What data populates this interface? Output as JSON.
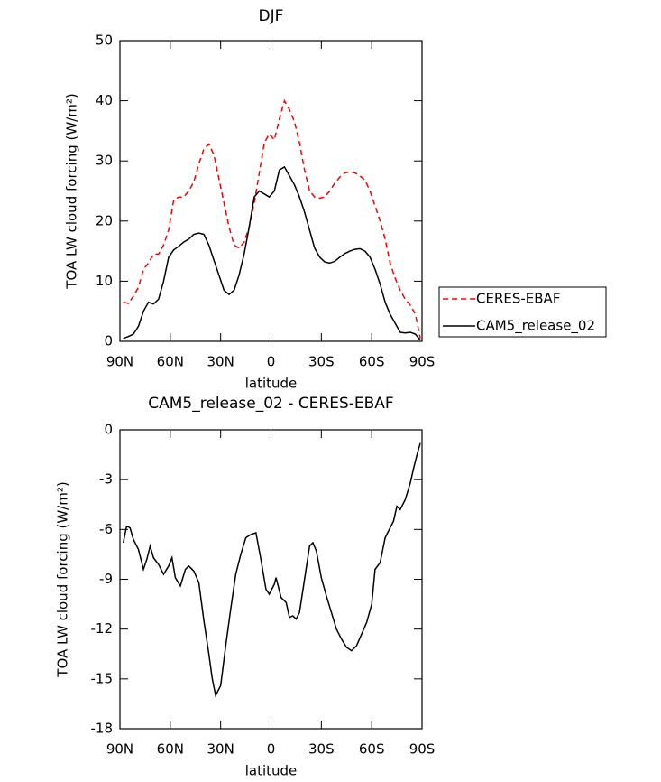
{
  "chart_data": [
    {
      "type": "line",
      "title": "DJF",
      "xlabel": "latitude",
      "ylabel": "TOA LW cloud forcing (W/m²)",
      "x": [
        88,
        85,
        82,
        79,
        76,
        73,
        70,
        67,
        64,
        61,
        58,
        55,
        52,
        49,
        46,
        43,
        40,
        37,
        34,
        31,
        28,
        25,
        22,
        19,
        16,
        13,
        10,
        7,
        4,
        1,
        -2,
        -5,
        -8,
        -11,
        -14,
        -17,
        -20,
        -23,
        -26,
        -29,
        -32,
        -35,
        -38,
        -41,
        -44,
        -47,
        -50,
        -53,
        -56,
        -59,
        -62,
        -65,
        -68,
        -71,
        -74,
        -77,
        -80,
        -83,
        -86,
        -89
      ],
      "series": [
        {
          "name": "CERES-EBAF",
          "color": "#ff0000",
          "linestyle": "dashed",
          "values": [
            6.5,
            6.3,
            7.5,
            9,
            12,
            13,
            14.5,
            14.5,
            16,
            18.5,
            23.5,
            24,
            24,
            25,
            26.5,
            29.5,
            32,
            32.8,
            31,
            27,
            23,
            19,
            16,
            15.5,
            16.5,
            19,
            23,
            28,
            33,
            34.5,
            33.5,
            37,
            40,
            38.5,
            36.5,
            33,
            28.5,
            25,
            24,
            23.8,
            24,
            25,
            26.3,
            27.3,
            28,
            28.2,
            28,
            27.5,
            26.8,
            25,
            22.5,
            20,
            17,
            13,
            10.5,
            8.5,
            7,
            6,
            4.5,
            0.5
          ]
        },
        {
          "name": "CAM5_release_02",
          "color": "#000000",
          "linestyle": "solid",
          "values": [
            0.5,
            0.8,
            1.2,
            2.5,
            5,
            6.5,
            6.2,
            7,
            10,
            14,
            15.2,
            15.8,
            16.5,
            17,
            17.8,
            18,
            17.8,
            16,
            13.5,
            11,
            8.5,
            7.8,
            8.5,
            11,
            14.5,
            19,
            24,
            25,
            24.5,
            24,
            25,
            28.5,
            29,
            27.5,
            26,
            24,
            21.5,
            18.5,
            15.5,
            14,
            13.2,
            13,
            13.3,
            14,
            14.6,
            15,
            15.3,
            15.4,
            15,
            14,
            12,
            9.5,
            6.5,
            4.5,
            3,
            1.5,
            1.4,
            1.5,
            1.2,
            0.2
          ]
        }
      ],
      "xlim": [
        90,
        -90
      ],
      "xticks": [
        {
          "value": 90,
          "label": "90N"
        },
        {
          "value": 60,
          "label": "60N"
        },
        {
          "value": 30,
          "label": "30N"
        },
        0,
        {
          "value": -30,
          "label": "30S"
        },
        {
          "value": -60,
          "label": "60S"
        },
        {
          "value": -90,
          "label": "90S"
        }
      ],
      "ylim": [
        0,
        50
      ],
      "yticks": [
        0,
        10,
        20,
        30,
        40,
        50
      ],
      "legend": "outside-right"
    },
    {
      "type": "line",
      "title": "CAM5_release_02 - CERES-EBAF",
      "xlabel": "latitude",
      "ylabel": "TOA LW cloud forcing (W/m²)",
      "x": [
        88,
        86,
        84,
        82,
        79,
        76,
        74,
        72,
        70,
        67,
        64,
        61,
        59,
        57,
        54,
        51,
        49,
        46,
        43,
        40,
        37,
        35,
        33,
        30,
        27,
        24,
        21,
        18,
        15,
        12,
        9,
        6,
        3,
        1,
        -2,
        -3,
        -6,
        -9,
        -11,
        -13,
        -15,
        -17,
        -20,
        -23,
        -25,
        -27,
        -30,
        -33,
        -36,
        -39,
        -42,
        -45,
        -48,
        -51,
        -54,
        -57,
        -60,
        -62,
        -65,
        -68,
        -71,
        -73,
        -75,
        -77,
        -80,
        -83,
        -85,
        -87,
        -89
      ],
      "series": [
        {
          "name": "CAM5_release_02 - CERES-EBAF",
          "color": "#000000",
          "linestyle": "solid",
          "values": [
            -6.8,
            -5.8,
            -5.9,
            -6.6,
            -7.2,
            -8.4,
            -7.8,
            -7.0,
            -7.7,
            -8.1,
            -8.7,
            -8.2,
            -7.7,
            -8.9,
            -9.4,
            -8.4,
            -8.2,
            -8.5,
            -9.2,
            -11.5,
            -13.5,
            -15,
            -16,
            -15.4,
            -13,
            -10.8,
            -8.7,
            -7.5,
            -6.5,
            -6.3,
            -6.2,
            -7.8,
            -9.6,
            -9.9,
            -9.3,
            -8.9,
            -10.1,
            -10.4,
            -11.3,
            -11.2,
            -11.4,
            -11,
            -9,
            -7,
            -6.8,
            -7.3,
            -8.9,
            -10,
            -11,
            -12,
            -12.6,
            -13.1,
            -13.3,
            -13,
            -12.3,
            -11.6,
            -10.5,
            -8.4,
            -8,
            -6.5,
            -5.9,
            -5.5,
            -4.6,
            -4.8,
            -4.2,
            -3.2,
            -2.3,
            -1.5,
            -0.8
          ]
        }
      ],
      "xlim": [
        90,
        -90
      ],
      "xticks": [
        {
          "value": 90,
          "label": "90N"
        },
        {
          "value": 60,
          "label": "60N"
        },
        {
          "value": 30,
          "label": "30N"
        },
        0,
        {
          "value": -30,
          "label": "30S"
        },
        {
          "value": -60,
          "label": "60S"
        },
        {
          "value": -90,
          "label": "90S"
        }
      ],
      "ylim": [
        -18,
        0
      ],
      "yticks": [
        -18,
        -15,
        -12,
        -9,
        -6,
        -3,
        0
      ]
    }
  ]
}
